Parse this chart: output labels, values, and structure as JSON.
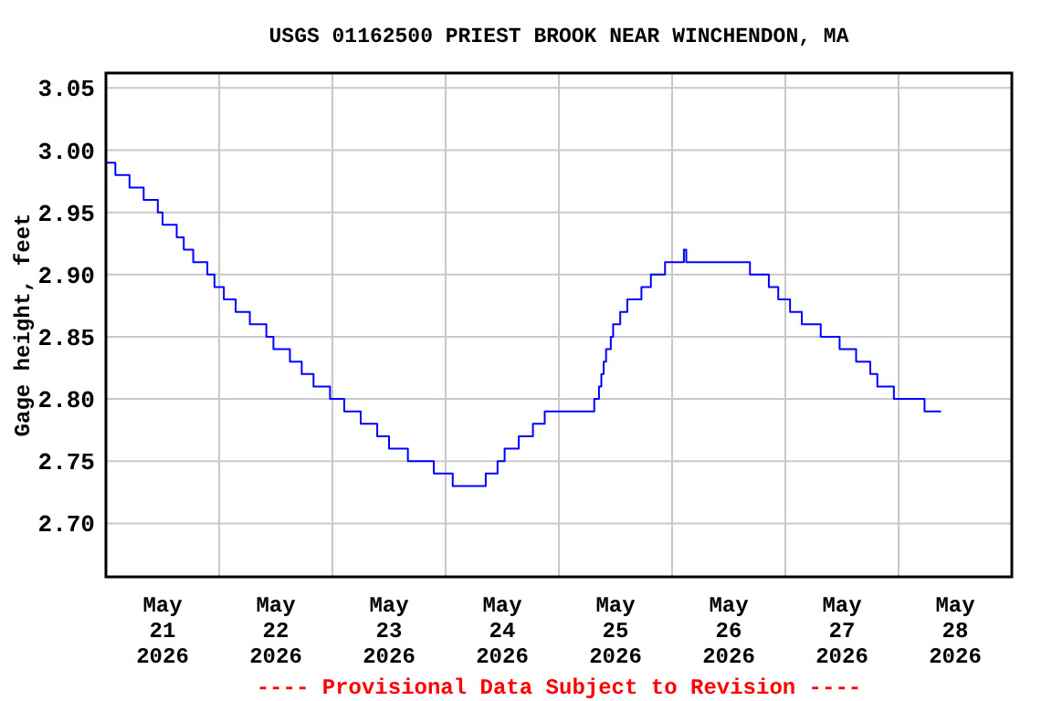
{
  "chart_data": {
    "type": "step",
    "title": "USGS 01162500 PRIEST BROOK NEAR WINCHENDON, MA",
    "ylabel": "Gage height, feet",
    "annotations": [
      "---- Provisional Data Subject to Revision ----"
    ],
    "x": [
      "2026-05-21T00:00",
      "2026-05-21T02:00",
      "2026-05-21T05:00",
      "2026-05-21T08:00",
      "2026-05-21T11:00",
      "2026-05-21T12:00",
      "2026-05-21T15:00",
      "2026-05-21T16:30",
      "2026-05-21T18:30",
      "2026-05-21T21:30",
      "2026-05-21T23:00",
      "2026-05-22T01:00",
      "2026-05-22T03:30",
      "2026-05-22T06:30",
      "2026-05-22T10:00",
      "2026-05-22T11:30",
      "2026-05-22T15:00",
      "2026-05-22T17:30",
      "2026-05-22T20:00",
      "2026-05-22T23:30",
      "2026-05-23T02:30",
      "2026-05-23T06:00",
      "2026-05-23T09:30",
      "2026-05-23T12:00",
      "2026-05-23T16:00",
      "2026-05-23T21:30",
      "2026-05-24T01:30",
      "2026-05-24T08:30",
      "2026-05-24T11:00",
      "2026-05-24T12:30",
      "2026-05-24T15:30",
      "2026-05-24T18:30",
      "2026-05-24T21:00",
      "2026-05-25T07:30",
      "2026-05-25T08:30",
      "2026-05-25T09:00",
      "2026-05-25T09:30",
      "2026-05-25T10:00",
      "2026-05-25T11:00",
      "2026-05-25T11:30",
      "2026-05-25T13:00",
      "2026-05-25T14:30",
      "2026-05-25T17:30",
      "2026-05-25T19:30",
      "2026-05-25T22:30",
      "2026-05-26T02:30",
      "2026-05-26T03:00",
      "2026-05-26T16:30",
      "2026-05-26T20:30",
      "2026-05-26T22:30",
      "2026-05-27T01:00",
      "2026-05-27T03:30",
      "2026-05-27T07:30",
      "2026-05-27T11:30",
      "2026-05-27T15:00",
      "2026-05-27T18:00",
      "2026-05-27T19:30",
      "2026-05-27T23:00",
      "2026-05-28T05:30",
      "2026-05-28T09:00"
    ],
    "series": [
      {
        "color": "#0000ff",
        "values": [
          2.99,
          2.98,
          2.97,
          2.96,
          2.95,
          2.94,
          2.93,
          2.92,
          2.91,
          2.9,
          2.89,
          2.88,
          2.87,
          2.86,
          2.85,
          2.84,
          2.83,
          2.82,
          2.81,
          2.8,
          2.79,
          2.78,
          2.77,
          2.76,
          2.75,
          2.74,
          2.73,
          2.74,
          2.75,
          2.76,
          2.77,
          2.78,
          2.79,
          2.8,
          2.81,
          2.82,
          2.83,
          2.84,
          2.85,
          2.86,
          2.87,
          2.88,
          2.89,
          2.9,
          2.91,
          2.92,
          2.91,
          2.9,
          2.89,
          2.88,
          2.87,
          2.86,
          2.85,
          2.84,
          2.83,
          2.82,
          2.81,
          2.8,
          2.79,
          2.79
        ]
      }
    ],
    "xlim": [
      "2026-05-21T00:00",
      "2026-05-29T00:00"
    ],
    "xticks": [
      {
        "value": "2026-05-21T12:00",
        "label": "May\n21\n2026"
      },
      {
        "value": "2026-05-22T12:00",
        "label": "May\n22\n2026"
      },
      {
        "value": "2026-05-23T12:00",
        "label": "May\n23\n2026"
      },
      {
        "value": "2026-05-24T12:00",
        "label": "May\n24\n2026"
      },
      {
        "value": "2026-05-25T12:00",
        "label": "May\n25\n2026"
      },
      {
        "value": "2026-05-26T12:00",
        "label": "May\n26\n2026"
      },
      {
        "value": "2026-05-27T12:00",
        "label": "May\n27\n2026"
      },
      {
        "value": "2026-05-28T12:00",
        "label": "May\n28\n2026"
      },
      {
        "value": "2026-05-22T00:00",
        "label": null
      },
      {
        "value": "2026-05-23T00:00",
        "label": null
      },
      {
        "value": "2026-05-24T00:00",
        "label": null
      },
      {
        "value": "2026-05-25T00:00",
        "label": null
      },
      {
        "value": "2026-05-26T00:00",
        "label": null
      },
      {
        "value": "2026-05-27T00:00",
        "label": null
      },
      {
        "value": "2026-05-28T00:00",
        "label": null
      }
    ],
    "ylim": [
      2.657,
      3.062
    ],
    "yticks": [
      {
        "value": 2.7,
        "label": "2.70"
      },
      {
        "value": 2.75,
        "label": "2.75"
      },
      {
        "value": 2.8,
        "label": "2.80"
      },
      {
        "value": 2.85,
        "label": "2.85"
      },
      {
        "value": 2.9,
        "label": "2.90"
      },
      {
        "value": 2.95,
        "label": "2.95"
      },
      {
        "value": 3.0,
        "label": "3.00"
      },
      {
        "value": 3.05,
        "label": "3.05"
      }
    ],
    "grid": true
  }
}
